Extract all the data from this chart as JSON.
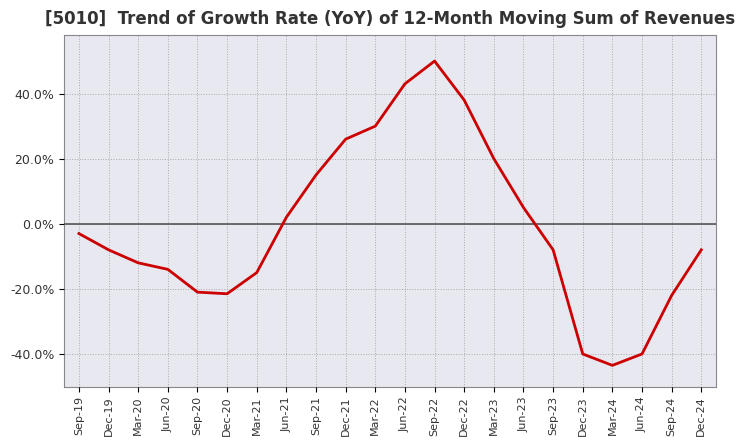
{
  "title": "[5010]  Trend of Growth Rate (YoY) of 12-Month Moving Sum of Revenues",
  "title_fontsize": 12,
  "line_color": "#cc0000",
  "background_color": "#ffffff",
  "plot_bg_color": "#e8e8f0",
  "grid_color": "#aaaaaa",
  "zero_line_color": "#555555",
  "ylim": [
    -50,
    58
  ],
  "yticks": [
    -40,
    -20,
    0,
    20,
    40
  ],
  "ytick_labels": [
    "-40.0%",
    "-20.0%",
    "0.0%",
    "20.0%",
    "40.0%"
  ],
  "dates": [
    "Sep-19",
    "Dec-19",
    "Mar-20",
    "Jun-20",
    "Sep-20",
    "Dec-20",
    "Mar-21",
    "Jun-21",
    "Sep-21",
    "Dec-21",
    "Mar-22",
    "Jun-22",
    "Sep-22",
    "Dec-22",
    "Mar-23",
    "Jun-23",
    "Sep-23",
    "Dec-23",
    "Mar-24",
    "Jun-24",
    "Sep-24",
    "Dec-24"
  ],
  "values": [
    -3.0,
    -8.0,
    -12.0,
    -14.0,
    -21.0,
    -21.5,
    -15.0,
    2.0,
    15.0,
    26.0,
    30.0,
    43.0,
    50.0,
    38.0,
    20.0,
    5.0,
    -8.0,
    -40.0,
    -43.5,
    -40.0,
    -22.0,
    -8.0
  ]
}
